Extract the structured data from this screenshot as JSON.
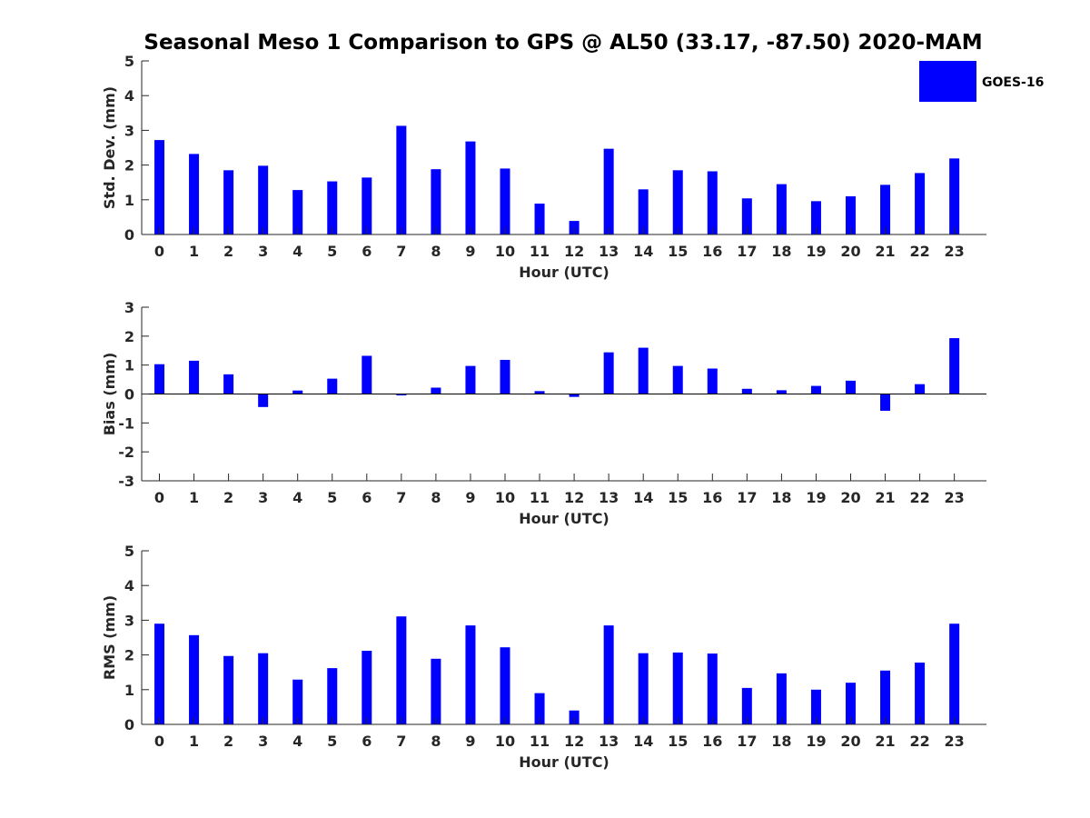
{
  "title": "Seasonal Meso 1 Comparison to GPS @ AL50 (33.17, -87.50) 2020-MAM",
  "legend": {
    "label": "GOES-16",
    "color": "#0000ff",
    "placement": "top-right"
  },
  "chart_data": [
    {
      "type": "bar",
      "name": "std-dev",
      "xlabel": "Hour (UTC)",
      "ylabel": "Std. Dev. (mm)",
      "ylim": [
        0,
        5
      ],
      "yticks": [
        0,
        1,
        2,
        3,
        4,
        5
      ],
      "categories": [
        "0",
        "1",
        "2",
        "3",
        "4",
        "5",
        "6",
        "7",
        "8",
        "9",
        "10",
        "11",
        "12",
        "13",
        "14",
        "15",
        "16",
        "17",
        "18",
        "19",
        "20",
        "21",
        "22",
        "23"
      ],
      "series": [
        {
          "name": "GOES-16",
          "color": "#0000ff",
          "values": [
            2.72,
            2.32,
            1.85,
            1.98,
            1.28,
            1.53,
            1.64,
            3.13,
            1.88,
            2.68,
            1.9,
            0.89,
            0.39,
            2.47,
            1.3,
            1.85,
            1.82,
            1.04,
            1.45,
            0.96,
            1.1,
            1.43,
            1.77,
            2.19
          ]
        }
      ],
      "grid": false
    },
    {
      "type": "bar",
      "name": "bias",
      "xlabel": "Hour (UTC)",
      "ylabel": "Bias (mm)",
      "ylim": [
        -3,
        3
      ],
      "yticks": [
        -3,
        -2,
        -1,
        0,
        1,
        2,
        3
      ],
      "categories": [
        "0",
        "1",
        "2",
        "3",
        "4",
        "5",
        "6",
        "7",
        "8",
        "9",
        "10",
        "11",
        "12",
        "13",
        "14",
        "15",
        "16",
        "17",
        "18",
        "19",
        "20",
        "21",
        "22",
        "23"
      ],
      "series": [
        {
          "name": "GOES-16",
          "color": "#0000ff",
          "values": [
            1.03,
            1.15,
            0.68,
            -0.45,
            0.12,
            0.53,
            1.32,
            -0.05,
            0.22,
            0.97,
            1.18,
            0.1,
            -0.1,
            1.44,
            1.6,
            0.97,
            0.88,
            0.18,
            0.13,
            0.28,
            0.46,
            -0.58,
            0.34,
            1.93
          ]
        }
      ],
      "grid": false
    },
    {
      "type": "bar",
      "name": "rms",
      "xlabel": "Hour (UTC)",
      "ylabel": "RMS (mm)",
      "ylim": [
        0,
        5
      ],
      "yticks": [
        0,
        1,
        2,
        3,
        4,
        5
      ],
      "categories": [
        "0",
        "1",
        "2",
        "3",
        "4",
        "5",
        "6",
        "7",
        "8",
        "9",
        "10",
        "11",
        "12",
        "13",
        "14",
        "15",
        "16",
        "17",
        "18",
        "19",
        "20",
        "21",
        "22",
        "23"
      ],
      "series": [
        {
          "name": "GOES-16",
          "color": "#0000ff",
          "values": [
            2.9,
            2.57,
            1.97,
            2.05,
            1.29,
            1.62,
            2.12,
            3.11,
            1.89,
            2.85,
            2.22,
            0.9,
            0.4,
            2.85,
            2.05,
            2.07,
            2.04,
            1.05,
            1.47,
            1.0,
            1.2,
            1.55,
            1.78,
            2.9
          ]
        }
      ],
      "grid": false
    }
  ]
}
